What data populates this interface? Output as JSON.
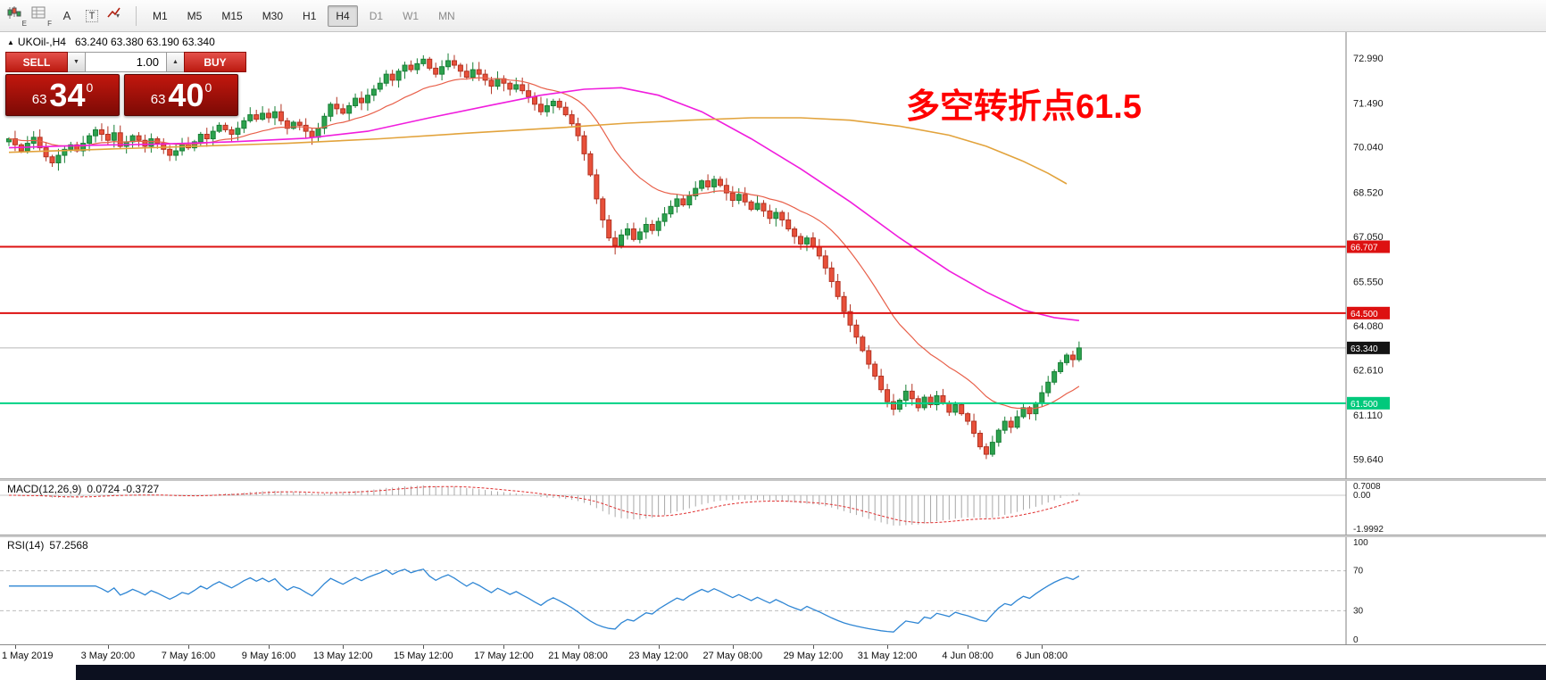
{
  "glyphs": {
    "marker_up": "▲",
    "spinner_up": "▲",
    "spinner_down": "▼",
    "caret_down": "▾"
  },
  "toolbar": {
    "icons": [
      {
        "name": "chart-objects-icon",
        "kind": "candles",
        "sub": "E"
      },
      {
        "name": "chart-window-icon",
        "kind": "grid",
        "sub": "F"
      },
      {
        "name": "font-tool-icon",
        "glyph": "A"
      },
      {
        "name": "text-tool-icon",
        "glyph": "T",
        "boxed": true
      },
      {
        "name": "drawing-tool-icon",
        "kind": "arrow",
        "caret": true
      }
    ],
    "timeframes": [
      {
        "label": "M1"
      },
      {
        "label": "M5"
      },
      {
        "label": "M15"
      },
      {
        "label": "M30"
      },
      {
        "label": "H1"
      },
      {
        "label": "H4",
        "active": true
      },
      {
        "label": "D1",
        "muted": true
      },
      {
        "label": "W1",
        "muted": true
      },
      {
        "label": "MN",
        "muted": true
      }
    ]
  },
  "chart": {
    "header_symbol": "UKOil-,H4",
    "header_ohlc": "63.240 63.380 63.190 63.340",
    "trade": {
      "sell_label": "SELL",
      "buy_label": "BUY",
      "volume": "1.00",
      "bid": {
        "big_prefix": "63",
        "big": "34",
        "sup": "0"
      },
      "ask": {
        "big_prefix": "63",
        "big": "40",
        "sup": "0"
      }
    },
    "annotation": {
      "text": "多空转折点61.5",
      "color": "#ff0000"
    },
    "ylim": [
      59.0,
      73.85
    ],
    "price_ticks": [
      {
        "label": "72.990",
        "value": 72.99
      },
      {
        "label": "71.490",
        "value": 71.49
      },
      {
        "label": "70.040",
        "value": 70.04
      },
      {
        "label": "68.520",
        "value": 68.52
      },
      {
        "label": "67.050",
        "value": 67.05
      },
      {
        "label": "65.550",
        "value": 65.55
      },
      {
        "label": "64.080",
        "value": 64.08
      },
      {
        "label": "62.610",
        "value": 62.61
      },
      {
        "label": "61.110",
        "value": 61.11
      },
      {
        "label": "59.640",
        "value": 59.64
      }
    ],
    "hlines": [
      {
        "value": 66.707,
        "color": "#dd1111",
        "width": 2,
        "tag": "66.707",
        "tag_bg": "#dd1111"
      },
      {
        "value": 64.5,
        "color": "#dd1111",
        "width": 2,
        "tag": "64.500",
        "tag_bg": "#dd1111"
      },
      {
        "value": 61.5,
        "color": "#00d284",
        "width": 2,
        "tag": "61.500",
        "tag_bg": "#00c97c"
      }
    ],
    "current_price": {
      "value": 63.34,
      "tag": "63.340",
      "tag_bg": "#141414",
      "line_color": "#b8b8b8"
    }
  },
  "chart_data": {
    "type": "candlestick",
    "symbol": "UKOil-",
    "timeframe": "H4",
    "first_open": 70.2,
    "closes": [
      70.3,
      70.1,
      69.9,
      70.15,
      70.35,
      70.0,
      69.7,
      69.5,
      69.75,
      69.95,
      70.1,
      69.9,
      70.15,
      70.4,
      70.6,
      70.45,
      70.25,
      70.5,
      70.05,
      70.2,
      70.4,
      70.25,
      70.05,
      70.3,
      70.15,
      69.95,
      69.75,
      69.9,
      70.1,
      70.0,
      70.2,
      70.45,
      70.3,
      70.55,
      70.75,
      70.6,
      70.45,
      70.65,
      70.9,
      71.1,
      70.95,
      71.15,
      71.0,
      71.2,
      70.9,
      70.65,
      70.85,
      70.75,
      70.55,
      70.35,
      70.65,
      71.05,
      71.45,
      71.3,
      71.15,
      71.4,
      71.65,
      71.5,
      71.75,
      71.95,
      72.15,
      72.45,
      72.25,
      72.55,
      72.75,
      72.6,
      72.8,
      72.95,
      72.65,
      72.45,
      72.7,
      72.9,
      72.75,
      72.55,
      72.35,
      72.6,
      72.45,
      72.25,
      72.05,
      72.3,
      72.15,
      71.95,
      72.1,
      71.9,
      71.7,
      71.45,
      71.2,
      71.4,
      71.55,
      71.35,
      71.1,
      70.8,
      70.4,
      69.8,
      69.1,
      68.3,
      67.6,
      67.0,
      66.75,
      67.1,
      67.3,
      66.95,
      67.2,
      67.45,
      67.25,
      67.55,
      67.8,
      68.05,
      68.3,
      68.1,
      68.4,
      68.65,
      68.9,
      68.7,
      68.95,
      68.75,
      68.5,
      68.25,
      68.45,
      68.2,
      67.95,
      68.15,
      67.9,
      67.65,
      67.85,
      67.6,
      67.3,
      67.05,
      66.8,
      67.0,
      66.7,
      66.4,
      66.0,
      65.55,
      65.05,
      64.55,
      64.1,
      63.7,
      63.25,
      62.8,
      62.4,
      61.95,
      61.55,
      61.3,
      61.6,
      61.9,
      61.65,
      61.35,
      61.7,
      61.45,
      61.75,
      61.5,
      61.2,
      61.45,
      61.15,
      60.9,
      60.5,
      60.05,
      59.8,
      60.2,
      60.6,
      60.9,
      60.7,
      61.05,
      61.35,
      61.15,
      61.5,
      61.85,
      62.2,
      62.55,
      62.85,
      63.1,
      62.95,
      63.34
    ],
    "high_overrides": {
      "67": 73.08
    },
    "low_overrides": {
      "98": 66.45,
      "158": 59.64
    },
    "x_labels": [
      {
        "label": "1 May 2019",
        "idx": 1
      },
      {
        "label": "3 May 20:00",
        "idx": 16
      },
      {
        "label": "7 May 16:00",
        "idx": 29
      },
      {
        "label": "9 May 16:00",
        "idx": 42
      },
      {
        "label": "13 May 12:00",
        "idx": 54
      },
      {
        "label": "15 May 12:00",
        "idx": 67
      },
      {
        "label": "17 May 12:00",
        "idx": 80
      },
      {
        "label": "21 May 08:00",
        "idx": 92
      },
      {
        "label": "23 May 12:00",
        "idx": 105
      },
      {
        "label": "27 May 08:00",
        "idx": 117
      },
      {
        "label": "29 May 12:00",
        "idx": 130
      },
      {
        "label": "31 May 12:00",
        "idx": 142
      },
      {
        "label": "4 Jun 08:00",
        "idx": 155
      },
      {
        "label": "6 Jun 08:00",
        "idx": 167
      }
    ],
    "colors": {
      "up": "#2ca24e",
      "up_border": "#187f36",
      "down": "#e8503a",
      "down_border": "#b23322",
      "ma_fast": "#e8604a",
      "ma_medium": "#f01ddd",
      "ma_slow": "#e2a33c"
    },
    "ma_fast_period": 20,
    "ma_medium_points": [
      [
        0,
        70.0
      ],
      [
        12,
        70.08
      ],
      [
        24,
        70.12
      ],
      [
        36,
        70.2
      ],
      [
        48,
        70.32
      ],
      [
        58,
        70.55
      ],
      [
        68,
        71.0
      ],
      [
        78,
        71.42
      ],
      [
        86,
        71.75
      ],
      [
        93,
        71.95
      ],
      [
        99,
        72.0
      ],
      [
        105,
        71.75
      ],
      [
        112,
        71.2
      ],
      [
        120,
        70.3
      ],
      [
        128,
        69.3
      ],
      [
        136,
        68.2
      ],
      [
        144,
        67.0
      ],
      [
        152,
        65.9
      ],
      [
        158,
        65.2
      ],
      [
        164,
        64.6
      ],
      [
        169,
        64.35
      ],
      [
        173,
        64.25
      ]
    ],
    "ma_slow_points": [
      [
        0,
        69.85
      ],
      [
        15,
        69.95
      ],
      [
        30,
        70.05
      ],
      [
        45,
        70.15
      ],
      [
        60,
        70.3
      ],
      [
        75,
        70.5
      ],
      [
        90,
        70.68
      ],
      [
        100,
        70.82
      ],
      [
        110,
        70.92
      ],
      [
        120,
        71.0
      ],
      [
        128,
        71.0
      ],
      [
        136,
        70.92
      ],
      [
        144,
        70.72
      ],
      [
        152,
        70.42
      ],
      [
        158,
        70.05
      ],
      [
        164,
        69.55
      ],
      [
        168,
        69.15
      ],
      [
        171,
        68.8
      ]
    ],
    "macd": {
      "label": "MACD(12,26,9)",
      "values_text": "0.0724 -0.3727",
      "fast": 12,
      "slow": 26,
      "signal": 9,
      "ylim": [
        -2.15,
        0.78
      ],
      "yticks": [
        {
          "label": "0.7008",
          "value": 0.7008
        },
        {
          "label": "0.00",
          "value": 0.0
        },
        {
          "label": "-1.9992",
          "value": -1.9992
        }
      ],
      "histogram_color": "#a8a8a8",
      "signal_color": "#e03030"
    },
    "rsi": {
      "label": "RSI(14)",
      "value_text": "57.2568",
      "period": 14,
      "ylim": [
        0,
        100
      ],
      "levels": [
        70,
        30
      ],
      "yticks": [
        {
          "label": "100",
          "value": 100
        },
        {
          "label": "70",
          "value": 70
        },
        {
          "label": "30",
          "value": 30
        },
        {
          "label": "0",
          "value": 0
        }
      ],
      "line_color": "#2f86d4"
    }
  }
}
